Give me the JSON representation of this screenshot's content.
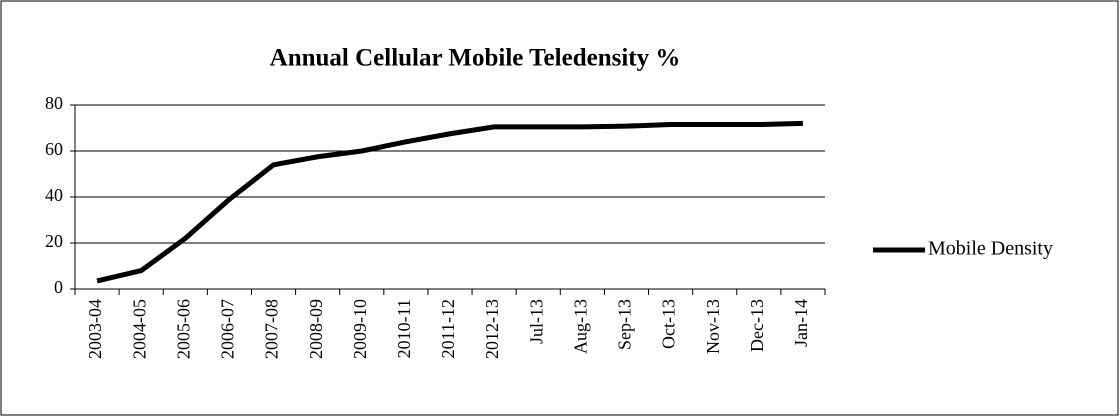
{
  "chart_data": {
    "type": "line",
    "title": "Annual Cellular Mobile Teledensity %",
    "categories": [
      "2003-04",
      "2004-05",
      "2005-06",
      "2006-07",
      "2007-08",
      "2008-09",
      "2009-10",
      "2010-11",
      "2011-12",
      "2012-13",
      "Jul-13",
      "Aug-13",
      "Sep-13",
      "Oct-13",
      "Nov-13",
      "Dec-13",
      "Jan-14"
    ],
    "series": [
      {
        "name": "Mobile Density",
        "color": "#000000",
        "values": [
          3.5,
          8,
          22,
          39,
          54,
          57.5,
          60,
          64,
          67.5,
          70.5,
          70.5,
          70.5,
          70.8,
          71.5,
          71.5,
          71.5,
          72
        ]
      }
    ],
    "ylim": [
      0,
      80
    ],
    "yticks": [
      0,
      20,
      40,
      60,
      80
    ],
    "grid": true,
    "legend": "right"
  }
}
